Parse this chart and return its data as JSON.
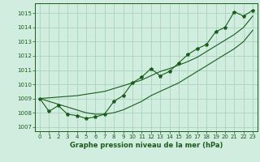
{
  "xlabel": "Graphe pression niveau de la mer (hPa)",
  "background_color": "#d0ede0",
  "grid_color": "#a8d4bc",
  "line_color": "#1a5c1a",
  "x_values": [
    0,
    1,
    2,
    3,
    4,
    5,
    6,
    7,
    8,
    9,
    10,
    11,
    12,
    13,
    14,
    15,
    16,
    17,
    18,
    19,
    20,
    21,
    22,
    23
  ],
  "y_main": [
    1009.0,
    1008.1,
    1008.5,
    1007.9,
    1007.8,
    1007.6,
    1007.7,
    1007.9,
    1008.8,
    1009.2,
    1010.1,
    1010.5,
    1011.1,
    1010.6,
    1010.9,
    1011.5,
    1012.1,
    1012.5,
    1012.8,
    1013.7,
    1014.0,
    1015.1,
    1014.8,
    1015.2
  ],
  "y_upper": [
    1009.0,
    1009.05,
    1009.1,
    1009.15,
    1009.2,
    1009.3,
    1009.4,
    1009.5,
    1009.7,
    1009.9,
    1010.1,
    1010.3,
    1010.6,
    1010.9,
    1011.1,
    1011.35,
    1011.6,
    1011.9,
    1012.3,
    1012.7,
    1013.1,
    1013.5,
    1014.0,
    1014.8
  ],
  "y_lower": [
    1009.0,
    1008.8,
    1008.6,
    1008.4,
    1008.2,
    1008.0,
    1007.9,
    1007.9,
    1008.0,
    1008.2,
    1008.5,
    1008.8,
    1009.2,
    1009.5,
    1009.8,
    1010.1,
    1010.5,
    1010.9,
    1011.3,
    1011.7,
    1012.1,
    1012.5,
    1013.0,
    1013.8
  ],
  "ylim": [
    1006.7,
    1015.7
  ],
  "xlim": [
    -0.5,
    23.5
  ],
  "yticks": [
    1007,
    1008,
    1009,
    1010,
    1011,
    1012,
    1013,
    1014,
    1015
  ],
  "xticks": [
    0,
    1,
    2,
    3,
    4,
    5,
    6,
    7,
    8,
    9,
    10,
    11,
    12,
    13,
    14,
    15,
    16,
    17,
    18,
    19,
    20,
    21,
    22,
    23
  ],
  "xtick_labels": [
    "0",
    "1",
    "2",
    "3",
    "4",
    "5",
    "6",
    "7",
    "8",
    "9",
    "10",
    "11",
    "12",
    "13",
    "14",
    "15",
    "16",
    "17",
    "18",
    "19",
    "20",
    "21",
    "22",
    "23"
  ],
  "marker": "*",
  "marker_size": 3.0,
  "line_width": 0.8
}
